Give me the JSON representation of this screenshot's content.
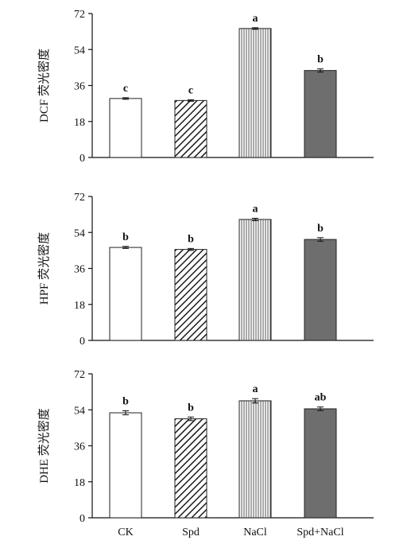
{
  "chart_data": [
    {
      "type": "bar",
      "ylabel": "DCF 荧光密度",
      "ylim": [
        0,
        72
      ],
      "yticks": [
        0,
        18,
        36,
        54,
        72
      ],
      "categories": [
        "CK",
        "Spd",
        "NaCl",
        "Spd+NaCl"
      ],
      "values": [
        29.5,
        28.5,
        64.5,
        43.5
      ],
      "errors": [
        0.4,
        0.4,
        0.4,
        0.8
      ],
      "significance": [
        "c",
        "c",
        "a",
        "b"
      ]
    },
    {
      "type": "bar",
      "ylabel": "HPF 荧光密度",
      "ylim": [
        0,
        72
      ],
      "yticks": [
        0,
        18,
        36,
        54,
        72
      ],
      "categories": [
        "CK",
        "Spd",
        "NaCl",
        "Spd+NaCl"
      ],
      "values": [
        46.5,
        45.5,
        60.5,
        50.5
      ],
      "errors": [
        0.5,
        0.5,
        0.6,
        0.9
      ],
      "significance": [
        "b",
        "b",
        "a",
        "b"
      ]
    },
    {
      "type": "bar",
      "ylabel": "DHE 荧光密度",
      "ylim": [
        0,
        72
      ],
      "yticks": [
        0,
        18,
        36,
        54,
        72
      ],
      "categories": [
        "CK",
        "Spd",
        "NaCl",
        "Spd+NaCl"
      ],
      "values": [
        52.5,
        49.5,
        58.5,
        54.5
      ],
      "errors": [
        1.0,
        0.9,
        1.1,
        0.9
      ],
      "significance": [
        "b",
        "b",
        "a",
        "ab"
      ]
    }
  ],
  "styles": {
    "bar_fills": [
      "white",
      "diagonal-hatch",
      "vertical-stripes",
      "solid-gray"
    ],
    "gray_color": "#6e6e6e",
    "axis_color": "#111111"
  }
}
